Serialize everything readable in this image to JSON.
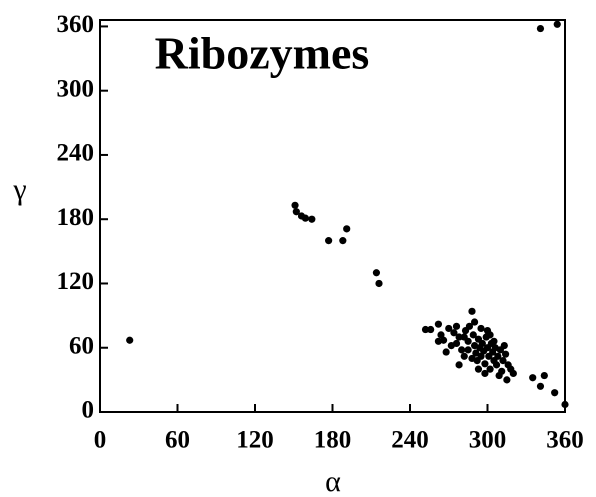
{
  "chart_data": {
    "type": "scatter",
    "title": "Ribozymes",
    "x_label": "α",
    "y_label": "γ",
    "xlim": [
      0,
      360
    ],
    "ylim": [
      0,
      366
    ],
    "xticks": [
      0,
      60,
      120,
      180,
      240,
      300,
      360
    ],
    "yticks": [
      0,
      60,
      120,
      180,
      240,
      300,
      360
    ],
    "color": "#000000",
    "x": [
      23,
      151,
      152,
      156,
      159,
      164,
      177,
      188,
      191,
      214,
      216,
      341,
      354,
      335,
      344,
      341,
      352,
      360,
      252,
      256,
      262,
      264,
      266,
      270,
      272,
      274,
      276,
      278,
      280,
      282,
      283,
      285,
      286,
      288,
      289,
      290,
      291,
      292,
      293,
      294,
      295,
      296,
      297,
      298,
      299,
      300,
      301,
      302,
      303,
      304,
      305,
      306,
      307,
      308,
      310,
      311,
      312,
      314,
      315,
      316,
      318,
      320,
      295,
      285,
      278,
      300,
      305,
      290,
      268,
      282,
      293,
      309,
      313,
      276,
      298,
      302,
      288,
      262
    ],
    "y": [
      67,
      193,
      187,
      183,
      181,
      180,
      160,
      160,
      171,
      130,
      120,
      358,
      362,
      32,
      34,
      24,
      18,
      7,
      77,
      77,
      82,
      72,
      67,
      78,
      62,
      74,
      80,
      70,
      58,
      52,
      76,
      66,
      80,
      94,
      72,
      62,
      55,
      48,
      68,
      60,
      52,
      64,
      57,
      45,
      70,
      60,
      52,
      40,
      64,
      56,
      48,
      60,
      44,
      52,
      58,
      38,
      48,
      54,
      30,
      44,
      40,
      36,
      78,
      58,
      44,
      76,
      66,
      84,
      56,
      70,
      40,
      34,
      62,
      64,
      36,
      72,
      50,
      66
    ]
  }
}
